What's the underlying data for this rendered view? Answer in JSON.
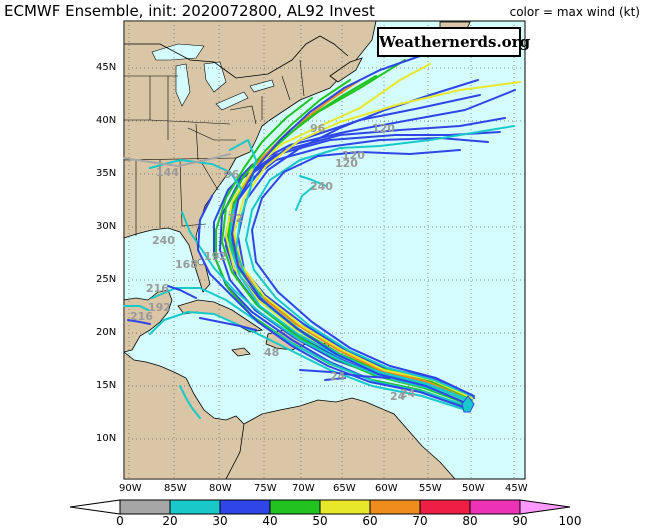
{
  "header": {
    "title": "ECMWF Ensemble, init: 2020072800, AL92 Invest",
    "color_label": "color = max wind (kt)",
    "logo": "Weathernerds.org"
  },
  "map": {
    "lat_labels": [
      "45N",
      "40N",
      "35N",
      "30N",
      "25N",
      "20N",
      "15N",
      "10N"
    ],
    "lon_labels": [
      "90W",
      "85W",
      "80W",
      "75W",
      "70W",
      "65W",
      "60W",
      "55W",
      "50W",
      "45W"
    ],
    "ocean_color": "#d4fcfc",
    "land_color": "#d9c6a6"
  },
  "track_hour_labels": [
    "24",
    "24",
    "120",
    "120",
    "240",
    "240",
    "96",
    "216",
    "192",
    "216",
    "192",
    "168",
    "144",
    "24",
    "48",
    "72",
    "96",
    "120"
  ],
  "colorbar": {
    "ticks": [
      "0",
      "20",
      "30",
      "40",
      "50",
      "60",
      "70",
      "80",
      "90",
      "100"
    ],
    "colors": [
      "#ffffff",
      "#a6a6a6",
      "#19c8c8",
      "#2f45e8",
      "#21c321",
      "#e8e82a",
      "#ef8c1e",
      "#ee1e44",
      "#ec33b8",
      "#ff99ff"
    ]
  }
}
